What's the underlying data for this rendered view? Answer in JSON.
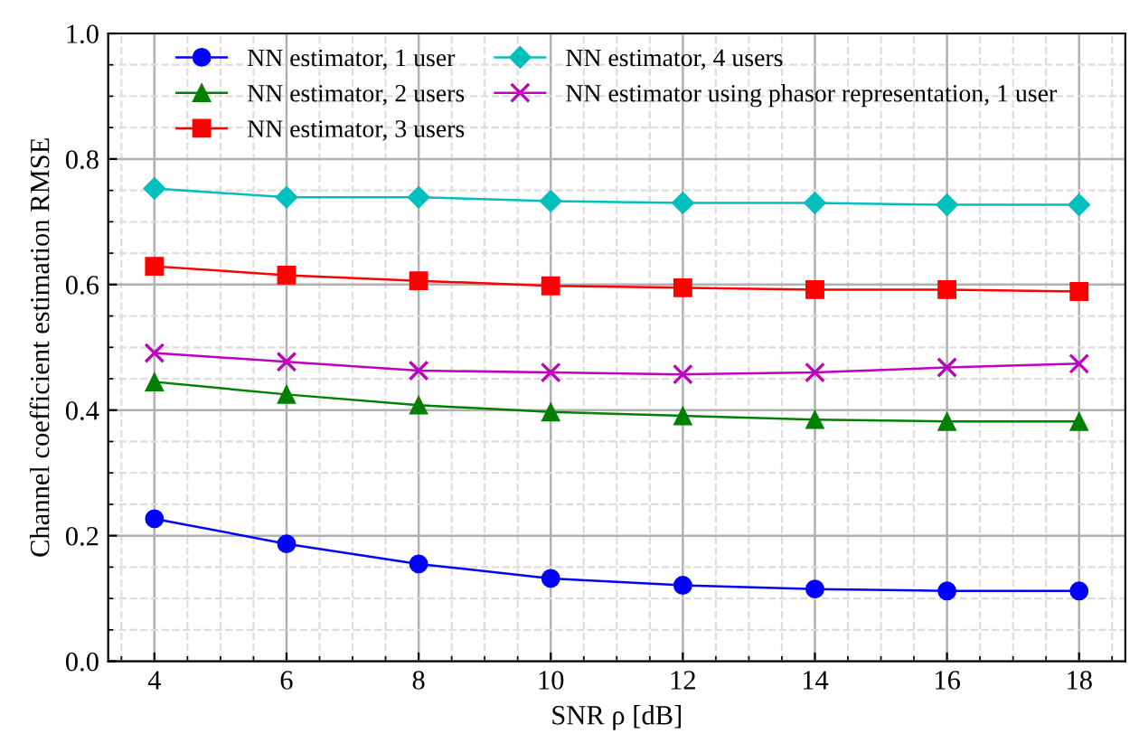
{
  "chart_data": {
    "type": "line",
    "xlabel": "SNR ρ [dB]",
    "ylabel": "Channel coefficient estimation RMSE",
    "x": [
      4,
      6,
      8,
      10,
      12,
      14,
      16,
      18
    ],
    "xlim": [
      3.3,
      18.7
    ],
    "xticks": [
      4,
      6,
      8,
      10,
      12,
      14,
      16,
      18
    ],
    "ylim": [
      0,
      1.0
    ],
    "yticks": [
      {
        "value": 0,
        "label": "0.0"
      },
      0.2,
      0.4,
      0.6,
      0.8,
      {
        "value": 1.0,
        "label": "1.0"
      }
    ],
    "grid": true,
    "legend": "top",
    "line_style": "solid",
    "series": [
      {
        "name": "NN estimator, 1 user",
        "color": "#0000ff",
        "marker": "circle",
        "values": [
          0.227,
          0.187,
          0.155,
          0.132,
          0.121,
          0.115,
          0.112,
          0.112
        ]
      },
      {
        "name": "NN estimator, 2 users",
        "color": "#008000",
        "marker": "triangle",
        "values": [
          0.445,
          0.425,
          0.408,
          0.397,
          0.391,
          0.385,
          0.382,
          0.382
        ]
      },
      {
        "name": "NN estimator, 3 users",
        "color": "#ff0000",
        "marker": "square",
        "values": [
          0.629,
          0.615,
          0.606,
          0.598,
          0.595,
          0.592,
          0.592,
          0.589
        ]
      },
      {
        "name": "NN estimator, 4 users",
        "color": "#00bfbf",
        "marker": "diamond",
        "values": [
          0.753,
          0.739,
          0.739,
          0.733,
          0.73,
          0.73,
          0.727,
          0.727
        ]
      },
      {
        "name": "NN estimator using phasor representation, 1 user",
        "color": "#bf00bf",
        "marker": "cross",
        "values": [
          0.491,
          0.477,
          0.463,
          0.46,
          0.457,
          0.46,
          0.468,
          0.474
        ]
      }
    ]
  }
}
